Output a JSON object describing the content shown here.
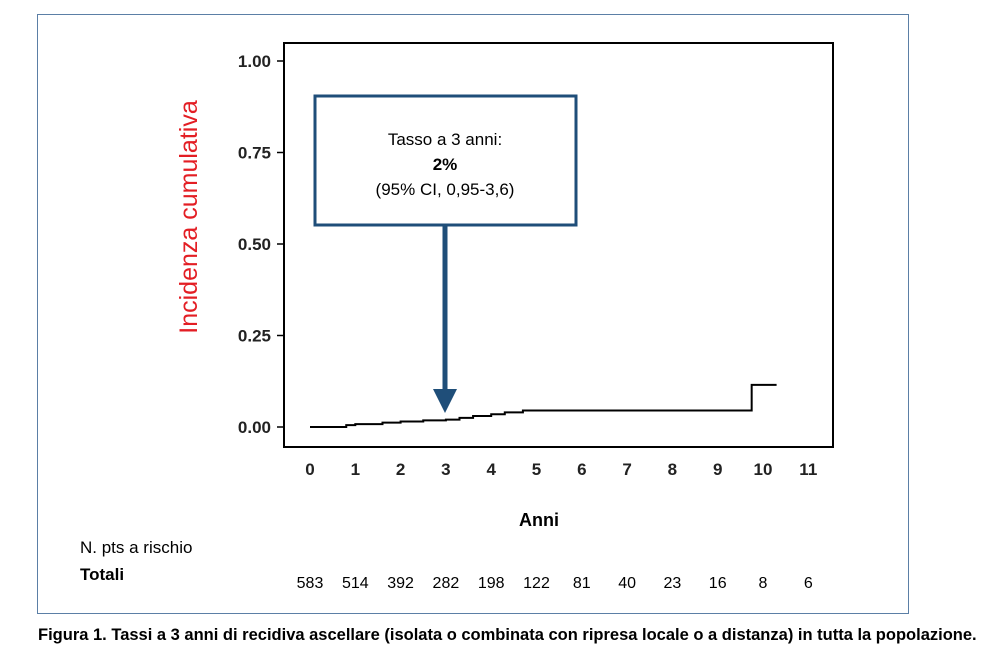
{
  "chart_data": {
    "type": "line",
    "ylabel": "Incidenza cumulativa",
    "xlabel": "Anni",
    "x_ticks": [
      "0",
      "1",
      "2",
      "3",
      "4",
      "5",
      "6",
      "7",
      "8",
      "9",
      "10",
      "11"
    ],
    "y_ticks": [
      "0.00",
      "0.25",
      "0.50",
      "0.75",
      "1.00"
    ],
    "xlim": [
      0,
      11
    ],
    "ylim": [
      0,
      1
    ],
    "grid": false,
    "step": true,
    "series": [
      {
        "x": [
          0,
          0.8,
          1.0,
          1.6,
          2.0,
          2.5,
          3.0,
          3.3,
          3.6,
          4.0,
          4.3,
          4.7,
          5.0,
          5.5,
          6.0,
          7.0,
          8.0,
          9.0,
          9.75,
          10.3
        ],
        "y": [
          0.0,
          0.005,
          0.008,
          0.012,
          0.015,
          0.018,
          0.02,
          0.025,
          0.03,
          0.035,
          0.04,
          0.045,
          0.045,
          0.045,
          0.045,
          0.045,
          0.045,
          0.045,
          0.115,
          0.115
        ],
        "color": "#000000"
      }
    ],
    "annotation": {
      "line1": "Tasso a 3 anni:",
      "line2": "2%",
      "line3": "(95% CI, 0,95-3,6)",
      "arrow_x": 3,
      "box_color": "#1f4e79"
    },
    "risk_table": {
      "header": "N. pts a rischio",
      "row_label": "Totali",
      "values": [
        "583",
        "514",
        "392",
        "282",
        "198",
        "122",
        "81",
        "40",
        "23",
        "16",
        "8",
        "6"
      ]
    },
    "ylabel_color": "#e31e24"
  },
  "caption": "Figura 1. Tassi a 3 anni di recidiva ascellare (isolata o combinata con ripresa locale o a distanza)  in tutta la popolazione."
}
